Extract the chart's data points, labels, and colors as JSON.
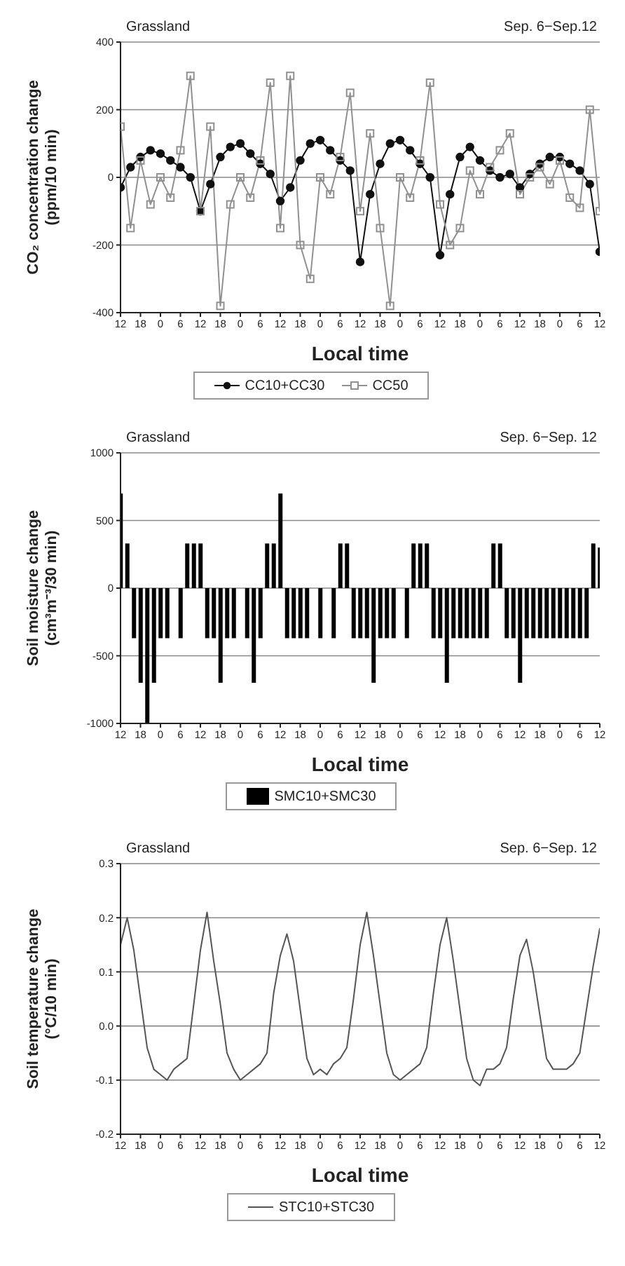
{
  "chart_data": [
    {
      "type": "line",
      "title": "Grassland",
      "subtitle": "Sep. 6−Sep.12",
      "xlabel": "Local time",
      "ylabel": "CO₂ concentration change (ppm/10 min)",
      "categories": [
        "12",
        null,
        "18",
        null,
        "0",
        null,
        "6",
        null,
        "12",
        null,
        "18",
        null,
        "0",
        null,
        "6",
        null,
        "12",
        null,
        "18",
        null,
        "0",
        null,
        "6",
        null,
        "12",
        null,
        "18",
        null,
        "0",
        null,
        "6",
        null,
        "12",
        null,
        "18",
        null,
        "0",
        null,
        "6",
        null,
        "12",
        null,
        "18",
        null,
        "0",
        null,
        "6",
        null,
        "12"
      ],
      "ylim": [
        -400,
        400
      ],
      "yticks": [
        -400,
        -200,
        0,
        200,
        400
      ],
      "grid": "y",
      "legend": "bottom",
      "series": [
        {
          "name": "CC10+CC30",
          "color": "#111111",
          "marker": "circle",
          "values": [
            -30,
            30,
            60,
            80,
            70,
            50,
            30,
            0,
            -100,
            -20,
            60,
            90,
            100,
            70,
            40,
            10,
            -70,
            -30,
            50,
            100,
            110,
            80,
            50,
            20,
            -250,
            -50,
            40,
            100,
            110,
            80,
            40,
            0,
            -230,
            -50,
            60,
            90,
            50,
            20,
            0,
            10,
            -30,
            10,
            40,
            60,
            60,
            40,
            20,
            -20,
            -220
          ]
        },
        {
          "name": "CC50",
          "color": "#909090",
          "marker": "square",
          "values": [
            150,
            -150,
            50,
            -80,
            0,
            -60,
            80,
            300,
            -100,
            150,
            -380,
            -80,
            0,
            -60,
            50,
            280,
            -150,
            300,
            -200,
            -300,
            0,
            -50,
            60,
            250,
            -100,
            130,
            -150,
            -380,
            0,
            -60,
            50,
            280,
            -80,
            -200,
            -150,
            20,
            -50,
            30,
            80,
            130,
            -50,
            0,
            30,
            -20,
            50,
            -60,
            -90,
            200,
            -100
          ]
        }
      ]
    },
    {
      "type": "bar",
      "title": "Grassland",
      "subtitle": "Sep. 6−Sep. 12",
      "xlabel": "Local time",
      "ylabel": "Soil moisture change (cm³m⁻³/30 min)",
      "categories": [
        "12",
        null,
        null,
        "18",
        null,
        null,
        "0",
        null,
        null,
        "6",
        null,
        null,
        "12",
        null,
        null,
        "18",
        null,
        null,
        "0",
        null,
        null,
        "6",
        null,
        null,
        "12",
        null,
        null,
        "18",
        null,
        null,
        "0",
        null,
        null,
        "6",
        null,
        null,
        "12",
        null,
        null,
        "18",
        null,
        null,
        "0",
        null,
        null,
        "6",
        null,
        null,
        "12",
        null,
        null,
        "18",
        null,
        null,
        "0",
        null,
        null,
        "6",
        null,
        null,
        "12",
        null,
        null,
        "18",
        null,
        null,
        "0",
        null,
        null,
        "6",
        null,
        null,
        "12"
      ],
      "ylim": [
        -1000,
        1000
      ],
      "yticks": [
        -1000,
        -500,
        0,
        500,
        1000
      ],
      "grid": "y",
      "legend": "bottom",
      "series": [
        {
          "name": "SMC10+SMC30",
          "color": "#000000",
          "values": [
            700,
            330,
            -370,
            -700,
            -1000,
            -700,
            -370,
            -370,
            0,
            -370,
            330,
            330,
            330,
            -370,
            -370,
            -700,
            -370,
            -370,
            0,
            -370,
            -700,
            -370,
            330,
            330,
            700,
            -370,
            -370,
            -370,
            -370,
            0,
            -370,
            0,
            -370,
            330,
            330,
            -370,
            -370,
            -370,
            -700,
            -370,
            -370,
            -370,
            0,
            -370,
            330,
            330,
            330,
            -370,
            -370,
            -700,
            -370,
            -370,
            -370,
            -370,
            -370,
            -370,
            330,
            330,
            -370,
            -370,
            -700,
            -370,
            -370,
            -370,
            -370,
            -370,
            -370,
            -370,
            -370,
            -370,
            -370,
            330,
            300
          ]
        }
      ]
    },
    {
      "type": "line",
      "title": "Grassland",
      "subtitle": "Sep. 6−Sep. 12",
      "xlabel": "Local time",
      "ylabel": "Soil temperature change (°C/10 min)",
      "categories": [
        "12",
        null,
        null,
        "18",
        null,
        null,
        "0",
        null,
        null,
        "6",
        null,
        null,
        "12",
        null,
        null,
        "18",
        null,
        null,
        "0",
        null,
        null,
        "6",
        null,
        null,
        "12",
        null,
        null,
        "18",
        null,
        null,
        "0",
        null,
        null,
        "6",
        null,
        null,
        "12",
        null,
        null,
        "18",
        null,
        null,
        "0",
        null,
        null,
        "6",
        null,
        null,
        "12",
        null,
        null,
        "18",
        null,
        null,
        "0",
        null,
        null,
        "6",
        null,
        null,
        "12",
        null,
        null,
        "18",
        null,
        null,
        "0",
        null,
        null,
        "6",
        null,
        null,
        "12"
      ],
      "ylim": [
        -0.2,
        0.3
      ],
      "yticks": [
        -0.2,
        -0.1,
        {
          "value": 0,
          "label": "0.0"
        },
        0.1,
        0.2,
        0.3
      ],
      "grid": "y",
      "legend": "bottom",
      "series": [
        {
          "name": "STC10+STC30",
          "color": "#555555",
          "values": [
            0.15,
            0.2,
            0.14,
            0.05,
            -0.04,
            -0.08,
            -0.09,
            -0.1,
            -0.08,
            -0.07,
            -0.06,
            0.04,
            0.14,
            0.21,
            0.12,
            0.04,
            -0.05,
            -0.08,
            -0.1,
            -0.09,
            -0.08,
            -0.07,
            -0.05,
            0.06,
            0.13,
            0.17,
            0.12,
            0.03,
            -0.06,
            -0.09,
            -0.08,
            -0.09,
            -0.07,
            -0.06,
            -0.04,
            0.05,
            0.15,
            0.21,
            0.13,
            0.04,
            -0.05,
            -0.09,
            -0.1,
            -0.09,
            -0.08,
            -0.07,
            -0.04,
            0.06,
            0.15,
            0.2,
            0.12,
            0.03,
            -0.06,
            -0.1,
            -0.11,
            -0.08,
            -0.08,
            -0.07,
            -0.04,
            0.05,
            0.13,
            0.16,
            0.1,
            0.02,
            -0.06,
            -0.08,
            -0.08,
            -0.08,
            -0.07,
            -0.05,
            0.03,
            0.11,
            0.18
          ]
        }
      ]
    }
  ]
}
